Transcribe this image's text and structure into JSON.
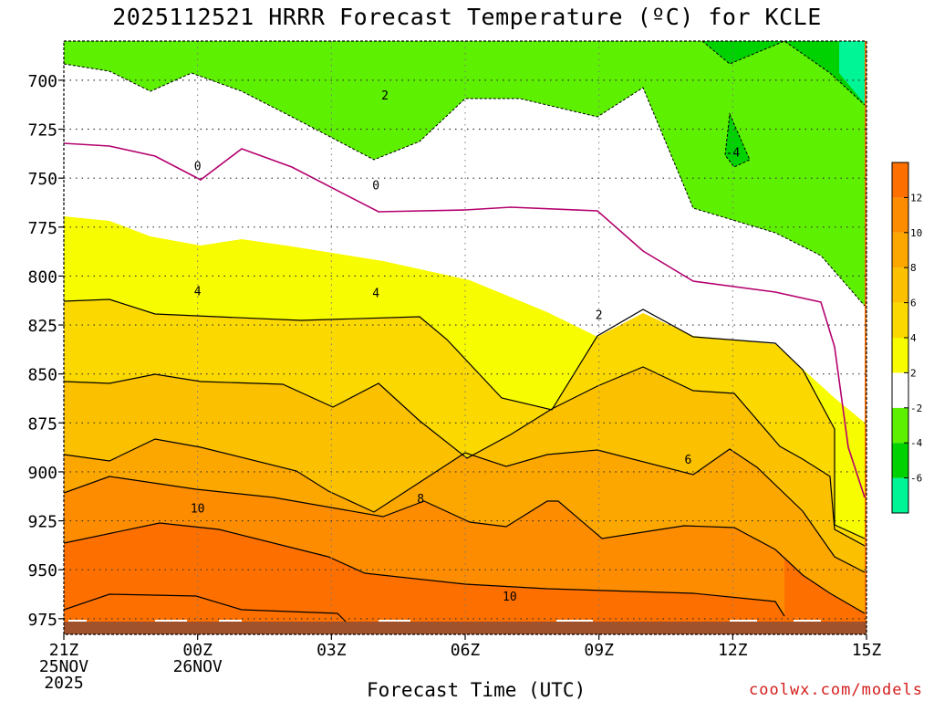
{
  "chart_data": {
    "type": "heatmap",
    "title": "2025112521 HRRR Forecast Temperature (ºC) for KCLE",
    "xlabel": "Forecast Time (UTC)",
    "ylabel": "",
    "credit": "coolwx.com/models",
    "x_ticks": [
      {
        "hour": 0,
        "lines": [
          "21Z",
          "25NOV",
          "2025"
        ]
      },
      {
        "hour": 3,
        "lines": [
          "00Z",
          "26NOV"
        ]
      },
      {
        "hour": 6,
        "lines": [
          "03Z"
        ]
      },
      {
        "hour": 9,
        "lines": [
          "06Z"
        ]
      },
      {
        "hour": 12,
        "lines": [
          "09Z"
        ]
      },
      {
        "hour": 15,
        "lines": [
          "12Z"
        ]
      },
      {
        "hour": 18,
        "lines": [
          "15Z"
        ]
      }
    ],
    "y_ticks": [
      700,
      725,
      750,
      775,
      800,
      825,
      850,
      875,
      900,
      925,
      950,
      975
    ],
    "xlim": [
      0,
      18
    ],
    "ylim": [
      680,
      983
    ],
    "grid": true,
    "colorbar": {
      "levels": [
        -8,
        -6,
        -4,
        -2,
        2,
        4,
        6,
        8,
        10,
        12,
        14
      ],
      "labels": [
        "-6",
        "-4",
        "-2",
        "2",
        "4",
        "6",
        "8",
        "10",
        "12"
      ],
      "colors": [
        "#00f596",
        "#00d100",
        "#5df000",
        "#ffffff",
        "#f8fc00",
        "#fbd800",
        "#fbc100",
        "#fca600",
        "#fd8c00",
        "#fd7000"
      ]
    },
    "bands": [
      {
        "lo": 12,
        "color": "#fd7000"
      },
      {
        "lo": 10,
        "color": "#fd8c00"
      },
      {
        "lo": 8,
        "color": "#fca600"
      },
      {
        "lo": 6,
        "color": "#fbc100"
      },
      {
        "lo": 4,
        "color": "#fbd800"
      },
      {
        "lo": 2,
        "color": "#f8fc00"
      },
      {
        "lo": -2,
        "color": "#ffffff"
      },
      {
        "lo": -4,
        "color": "#5df000"
      },
      {
        "lo": -6,
        "color": "#00d100"
      },
      {
        "lo": -8,
        "color": "#00f596"
      }
    ],
    "ground_color": "#a0522d",
    "contour_labels": [
      {
        "text": "2",
        "hour": 7.2,
        "p": 708
      },
      {
        "text": "-4",
        "hour": 15.0,
        "p": 737
      },
      {
        "text": "0",
        "hour": 3.0,
        "p": 744
      },
      {
        "text": "0",
        "hour": 7.0,
        "p": 754
      },
      {
        "text": "4",
        "hour": 3.0,
        "p": 808
      },
      {
        "text": "4",
        "hour": 7.0,
        "p": 809
      },
      {
        "text": "2",
        "hour": 12.0,
        "p": 820
      },
      {
        "text": "6",
        "hour": 14.0,
        "p": 894
      },
      {
        "text": "8",
        "hour": 8.0,
        "p": 914
      },
      {
        "text": "10",
        "hour": 3.0,
        "p": 919
      },
      {
        "text": "10",
        "hour": 10.0,
        "p": 964
      }
    ]
  }
}
